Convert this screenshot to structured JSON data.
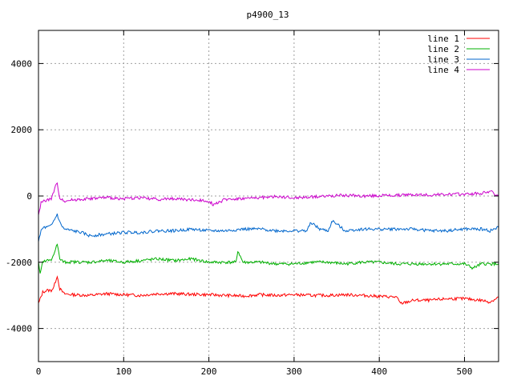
{
  "chart_data": {
    "type": "line",
    "title": "p4900_13",
    "xlabel": "",
    "ylabel": "",
    "xlim": [
      0,
      540
    ],
    "ylim": [
      -5000,
      5000
    ],
    "xticks": [
      0,
      100,
      200,
      300,
      400,
      500
    ],
    "yticks": [
      -4000,
      -2000,
      0,
      2000,
      4000
    ],
    "grid": true,
    "legend_position": "top-right",
    "series": [
      {
        "name": "line 1",
        "color": "#ff0000",
        "x": [
          0,
          5,
          10,
          15,
          18,
          22,
          25,
          30,
          40,
          60,
          80,
          100,
          120,
          140,
          160,
          180,
          200,
          220,
          240,
          260,
          280,
          300,
          320,
          340,
          360,
          380,
          400,
          420,
          425,
          440,
          460,
          480,
          500,
          520,
          530,
          540
        ],
        "y": [
          -3250,
          -2900,
          -2850,
          -2850,
          -2750,
          -2400,
          -2800,
          -2950,
          -2980,
          -3000,
          -2950,
          -2980,
          -3000,
          -2950,
          -2950,
          -2970,
          -2980,
          -3000,
          -3020,
          -2980,
          -3000,
          -2980,
          -3000,
          -3000,
          -2980,
          -3000,
          -3030,
          -3050,
          -3250,
          -3150,
          -3150,
          -3100,
          -3100,
          -3150,
          -3200,
          -3050
        ]
      },
      {
        "name": "line 2",
        "color": "#00b000",
        "x": [
          0,
          2,
          5,
          10,
          15,
          22,
          25,
          30,
          40,
          60,
          80,
          100,
          120,
          140,
          160,
          180,
          200,
          220,
          232,
          234,
          240,
          260,
          280,
          300,
          320,
          340,
          360,
          380,
          400,
          420,
          440,
          460,
          480,
          500,
          510,
          520,
          530,
          540
        ],
        "y": [
          -2000,
          -2350,
          -2000,
          -1950,
          -1950,
          -1450,
          -1900,
          -2000,
          -1990,
          -2000,
          -1950,
          -2000,
          -1950,
          -1900,
          -1950,
          -1900,
          -2000,
          -2000,
          -2000,
          -1650,
          -2000,
          -2000,
          -2050,
          -2050,
          -2000,
          -2000,
          -2050,
          -2000,
          -2000,
          -2050,
          -2050,
          -2050,
          -2050,
          -2050,
          -2180,
          -2050,
          -2050,
          -2050
        ]
      },
      {
        "name": "line 3",
        "color": "#0066cc",
        "x": [
          0,
          3,
          6,
          10,
          15,
          20,
          22,
          25,
          30,
          40,
          50,
          60,
          80,
          100,
          120,
          140,
          160,
          180,
          200,
          220,
          240,
          260,
          280,
          300,
          315,
          320,
          330,
          340,
          345,
          360,
          380,
          400,
          420,
          440,
          460,
          480,
          500,
          520,
          530,
          540
        ],
        "y": [
          -1400,
          -1050,
          -950,
          -950,
          -900,
          -650,
          -550,
          -800,
          -1000,
          -1050,
          -1100,
          -1200,
          -1150,
          -1100,
          -1100,
          -1050,
          -1050,
          -1000,
          -1050,
          -1050,
          -1000,
          -1000,
          -1050,
          -1050,
          -1050,
          -800,
          -1000,
          -1050,
          -750,
          -1050,
          -1000,
          -1000,
          -1000,
          -1000,
          -1050,
          -1050,
          -1000,
          -1000,
          -1050,
          -950
        ]
      },
      {
        "name": "line 4",
        "color": "#cc00cc",
        "x": [
          0,
          3,
          6,
          10,
          15,
          20,
          22,
          25,
          30,
          40,
          60,
          80,
          100,
          120,
          140,
          160,
          180,
          200,
          205,
          220,
          240,
          260,
          280,
          300,
          320,
          340,
          360,
          380,
          400,
          420,
          440,
          460,
          480,
          500,
          520,
          530,
          540
        ],
        "y": [
          -600,
          -200,
          -150,
          -120,
          -100,
          300,
          350,
          -50,
          -150,
          -120,
          -80,
          -50,
          -80,
          -50,
          -100,
          -80,
          -120,
          -150,
          -250,
          -100,
          -80,
          -50,
          -20,
          -60,
          -30,
          0,
          20,
          0,
          10,
          20,
          40,
          30,
          50,
          60,
          80,
          150,
          0
        ]
      }
    ]
  }
}
